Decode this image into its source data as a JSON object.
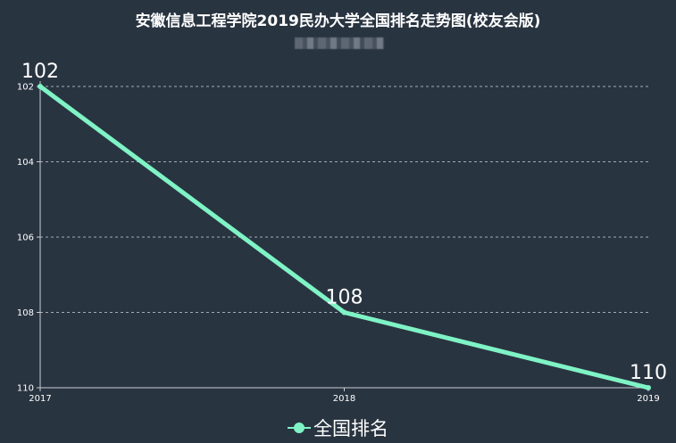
{
  "chart_data": {
    "type": "line",
    "title": "安徽信息工程学院2019民办大学全国排名走势图(校友会版)",
    "x": [
      "2017",
      "2018",
      "2019"
    ],
    "series": [
      {
        "name": "全国排名",
        "values": [
          102,
          108,
          110
        ]
      }
    ],
    "yticks": [
      "102",
      "104",
      "106",
      "108",
      "110"
    ],
    "ylim": [
      102,
      110
    ],
    "y_inverted": true,
    "grid": true,
    "legend": "bottom-center",
    "colors": {
      "background": "#293441",
      "line": "#7ff3c5",
      "text": "#ffffff",
      "grid": "#a4acb5"
    }
  }
}
